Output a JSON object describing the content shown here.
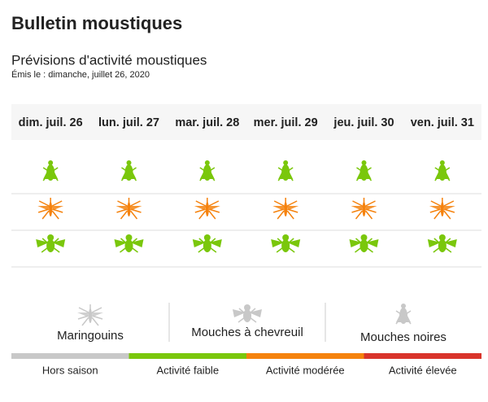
{
  "header": {
    "title": "Bulletin moustiques",
    "subtitle": "Prévisions d'activité moustiques",
    "issued": "Émis le : dimanche, juillet 26, 2020"
  },
  "days": [
    "dim. juil. 26",
    "lun. juil. 27",
    "mar. juil. 28",
    "mer. juil. 29",
    "jeu. juil. 30",
    "ven. juil. 31"
  ],
  "grid": {
    "rows": [
      {
        "icon": "blackfly",
        "colors": [
          "#7ac70c",
          "#7ac70c",
          "#7ac70c",
          "#7ac70c",
          "#7ac70c",
          "#7ac70c"
        ]
      },
      {
        "icon": "mosquito",
        "colors": [
          "#f5820d",
          "#f5820d",
          "#f5820d",
          "#f5820d",
          "#f5820d",
          "#f5820d"
        ]
      },
      {
        "icon": "deerfly",
        "colors": [
          "#7ac70c",
          "#7ac70c",
          "#7ac70c",
          "#7ac70c",
          "#7ac70c",
          "#7ac70c"
        ]
      }
    ]
  },
  "insects": [
    {
      "icon": "mosquito",
      "label": "Maringouins"
    },
    {
      "icon": "deerfly",
      "label": "Mouches à chevreuil"
    },
    {
      "icon": "blackfly",
      "label": "Mouches noires"
    }
  ],
  "scale": [
    {
      "label": "Hors saison",
      "color": "#c8c8c8"
    },
    {
      "label": "Activité faible",
      "color": "#7ac70c"
    },
    {
      "label": "Activité modérée",
      "color": "#f5820d"
    },
    {
      "label": "Activité élevée",
      "color": "#d9342b"
    }
  ]
}
